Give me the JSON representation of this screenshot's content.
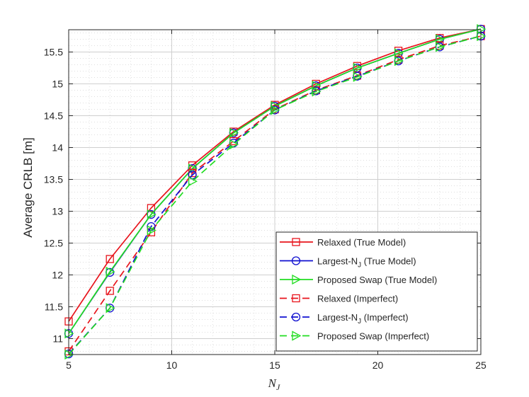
{
  "chart_data": {
    "type": "line",
    "title": "",
    "xlabel": "N",
    "xlabel_sub": "J",
    "ylabel": "Average CRLB [m]",
    "xlim": [
      5,
      25
    ],
    "ylim": [
      10.75,
      15.85
    ],
    "xticks": [
      "5",
      "10",
      "15",
      "20",
      "25"
    ],
    "xtick_values": [
      5,
      10,
      15,
      20,
      25
    ],
    "yticks": [
      "11",
      "11.5",
      "12",
      "12.5",
      "13",
      "13.5",
      "14",
      "14.5",
      "15",
      "15.5"
    ],
    "ytick_values": [
      11,
      11.5,
      12,
      12.5,
      13,
      13.5,
      14,
      14.5,
      15,
      15.5
    ],
    "grid": true,
    "minor_grid": true,
    "legend_position": "bottom-right",
    "x": [
      5,
      7,
      9,
      11,
      13,
      15,
      17,
      19,
      21,
      23,
      25
    ],
    "series": [
      {
        "name": "Relaxed (True Model)",
        "name_sub": "",
        "name_suffix": "",
        "color": "#e8141c",
        "dash": "solid",
        "marker": "square",
        "values": [
          11.27,
          12.25,
          13.05,
          13.72,
          14.25,
          14.67,
          15.0,
          15.28,
          15.52,
          15.72,
          15.86
        ]
      },
      {
        "name": "Largest-N",
        "name_sub": "J",
        "name_suffix": " (True Model)",
        "color": "#1010d0",
        "dash": "solid",
        "marker": "circle",
        "values": [
          11.08,
          12.04,
          12.95,
          13.67,
          14.23,
          14.65,
          14.97,
          15.25,
          15.48,
          15.7,
          15.86
        ]
      },
      {
        "name": "Proposed Swap (True Model)",
        "name_sub": "",
        "name_suffix": "",
        "color": "#22dd22",
        "dash": "solid",
        "marker": "triangle-right",
        "values": [
          11.08,
          12.05,
          12.95,
          13.67,
          14.23,
          14.65,
          14.97,
          15.25,
          15.48,
          15.7,
          15.86
        ]
      },
      {
        "name": "Relaxed (Imperfect)",
        "name_sub": "",
        "name_suffix": "",
        "color": "#e8141c",
        "dash": "dashed",
        "marker": "square",
        "values": [
          10.8,
          11.75,
          12.67,
          13.6,
          14.1,
          14.6,
          14.9,
          15.13,
          15.38,
          15.6,
          15.75
        ]
      },
      {
        "name": "Largest-N",
        "name_sub": "J",
        "name_suffix": " (Imperfect)",
        "color": "#1010d0",
        "dash": "dashed",
        "marker": "circle",
        "values": [
          10.76,
          11.48,
          12.76,
          13.57,
          14.07,
          14.59,
          14.89,
          15.12,
          15.36,
          15.58,
          15.75
        ]
      },
      {
        "name": "Proposed Swap (Imperfect)",
        "name_sub": "",
        "name_suffix": "",
        "color": "#22dd22",
        "dash": "dashed",
        "marker": "triangle-right",
        "values": [
          10.75,
          11.48,
          12.7,
          13.47,
          14.05,
          14.59,
          14.88,
          15.11,
          15.36,
          15.58,
          15.75
        ]
      }
    ]
  }
}
